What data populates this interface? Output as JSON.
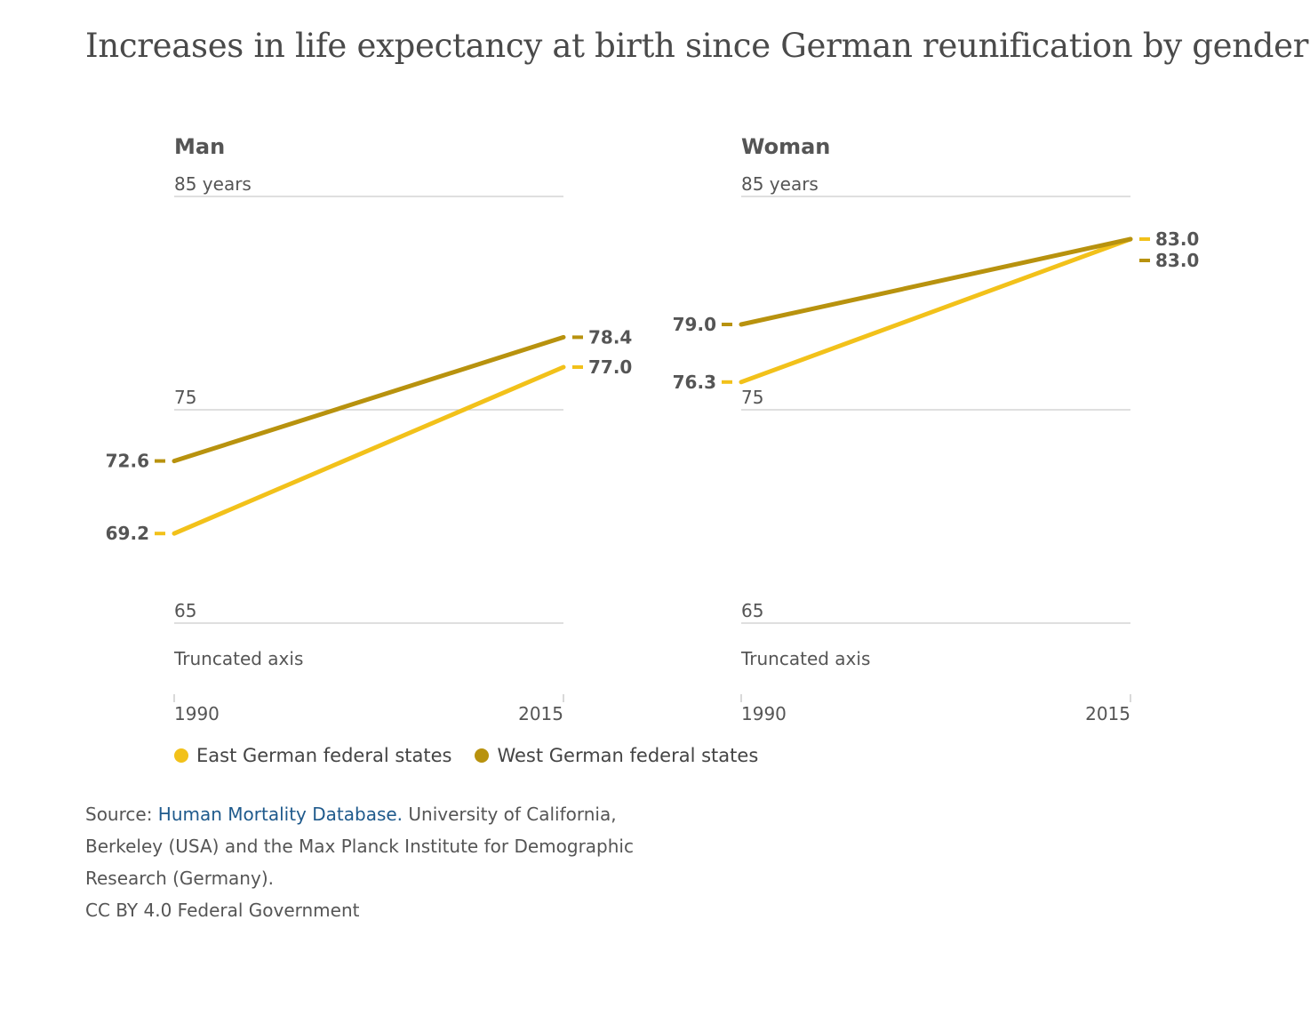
{
  "title": "Increases in life expectancy at birth since German reunification by gender",
  "colors": {
    "east": "#f2c11a",
    "west": "#b8920e",
    "grid": "#cccccc",
    "text": "#555555",
    "link": "#1f5a8c"
  },
  "chart_data": [
    {
      "type": "line",
      "title": "Man",
      "x": [
        "1990",
        "2015"
      ],
      "ylim": [
        65,
        85
      ],
      "y_ticks": [
        {
          "value": 85,
          "label": "85 years"
        },
        {
          "value": 75,
          "label": "75"
        },
        {
          "value": 65,
          "label": "65"
        }
      ],
      "axis_note": "Truncated axis",
      "series": [
        {
          "name": "East German federal states",
          "values": [
            69.2,
            77.0
          ],
          "labels": [
            "69.2",
            "77.0"
          ]
        },
        {
          "name": "West German federal states",
          "values": [
            72.6,
            78.4
          ],
          "labels": [
            "72.6",
            "78.4"
          ]
        }
      ]
    },
    {
      "type": "line",
      "title": "Woman",
      "x": [
        "1990",
        "2015"
      ],
      "ylim": [
        65,
        85
      ],
      "y_ticks": [
        {
          "value": 85,
          "label": "85 years"
        },
        {
          "value": 75,
          "label": "75"
        },
        {
          "value": 65,
          "label": "65"
        }
      ],
      "axis_note": "Truncated axis",
      "series": [
        {
          "name": "East German federal states",
          "values": [
            76.3,
            83.0
          ],
          "labels": [
            "76.3",
            "83.0"
          ]
        },
        {
          "name": "West German federal states",
          "values": [
            79.0,
            83.0
          ],
          "labels": [
            "79.0",
            "83.0"
          ]
        }
      ]
    }
  ],
  "legend": [
    {
      "label": "East German federal states",
      "color": "#f2c11a"
    },
    {
      "label": "West German federal states",
      "color": "#b8920e"
    }
  ],
  "source": {
    "prefix": "Source: ",
    "link_text": "Human Mortality Database.",
    "rest": " University of California, Berkeley (USA) and the Max Planck Institute for Demographic Research (Germany).",
    "license": "CC BY 4.0 Federal Government"
  }
}
